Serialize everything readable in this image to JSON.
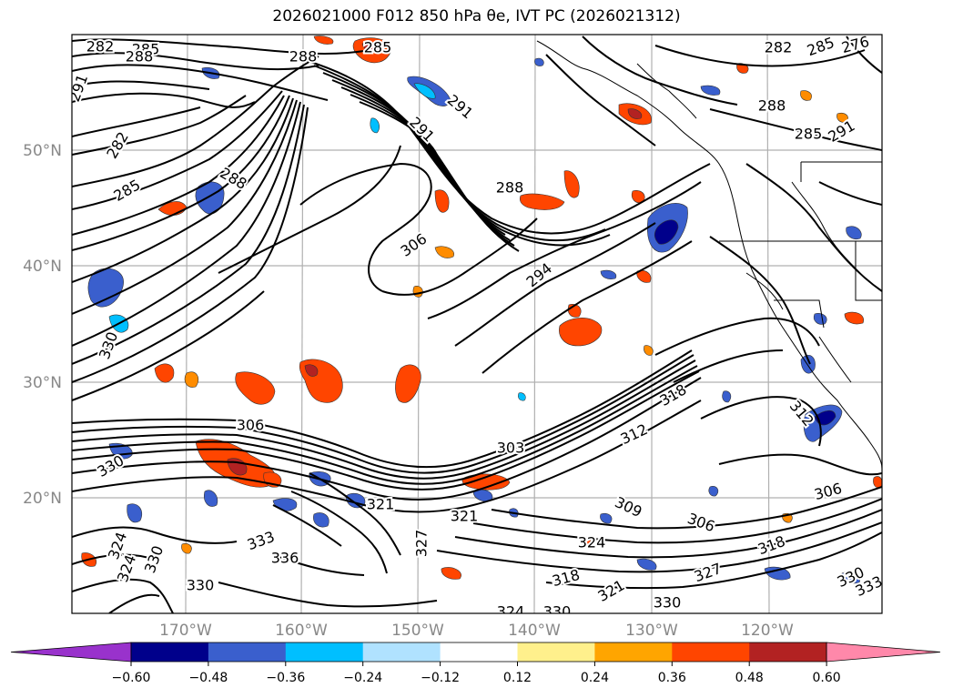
{
  "title": "2026021000 F012 850 hPa θe, IVT PC (2026021312)",
  "latitude_labels": [
    "50°N",
    "40°N",
    "30°N",
    "20°N"
  ],
  "longitude_labels": [
    "170°W",
    "160°W",
    "150°W",
    "140°W",
    "130°W",
    "120°W"
  ],
  "colorbar": {
    "colors": [
      "#9932cc",
      "#00008b",
      "#3a5fcd",
      "#00bfff",
      "#b0e2ff",
      "#ffffff",
      "#fff08c",
      "#ffa500",
      "#ff4500",
      "#b22222",
      "#ff88aa"
    ],
    "tick_labels": [
      "−0.60",
      "−0.48",
      "−0.36",
      "−0.24",
      "−0.12",
      "0.12",
      "0.24",
      "0.36",
      "0.48",
      "0.60"
    ]
  },
  "contour_labels": [
    {
      "text": "282"
    },
    {
      "text": "285"
    },
    {
      "text": "288"
    },
    {
      "text": "288"
    },
    {
      "text": "285"
    },
    {
      "text": "291"
    },
    {
      "text": "282"
    },
    {
      "text": "288"
    },
    {
      "text": "285"
    },
    {
      "text": "291"
    },
    {
      "text": "291"
    },
    {
      "text": "288"
    },
    {
      "text": "306"
    },
    {
      "text": "294"
    },
    {
      "text": "288"
    },
    {
      "text": "285"
    },
    {
      "text": "291"
    },
    {
      "text": "282"
    },
    {
      "text": "285"
    },
    {
      "text": "276"
    },
    {
      "text": "306"
    },
    {
      "text": "303"
    },
    {
      "text": "312"
    },
    {
      "text": "330"
    },
    {
      "text": "321"
    },
    {
      "text": "321"
    },
    {
      "text": "309"
    },
    {
      "text": "306"
    },
    {
      "text": "324"
    },
    {
      "text": "333"
    },
    {
      "text": "336"
    },
    {
      "text": "327"
    },
    {
      "text": "318"
    },
    {
      "text": "321"
    },
    {
      "text": "330"
    },
    {
      "text": "330"
    },
    {
      "text": "330"
    },
    {
      "text": "324"
    },
    {
      "text": "330"
    },
    {
      "text": "333"
    },
    {
      "text": "318"
    },
    {
      "text": "306"
    },
    {
      "text": "312"
    },
    {
      "text": "327"
    },
    {
      "text": "324"
    },
    {
      "text": "324"
    },
    {
      "text": "330"
    },
    {
      "text": "330"
    },
    {
      "text": "318"
    }
  ]
}
